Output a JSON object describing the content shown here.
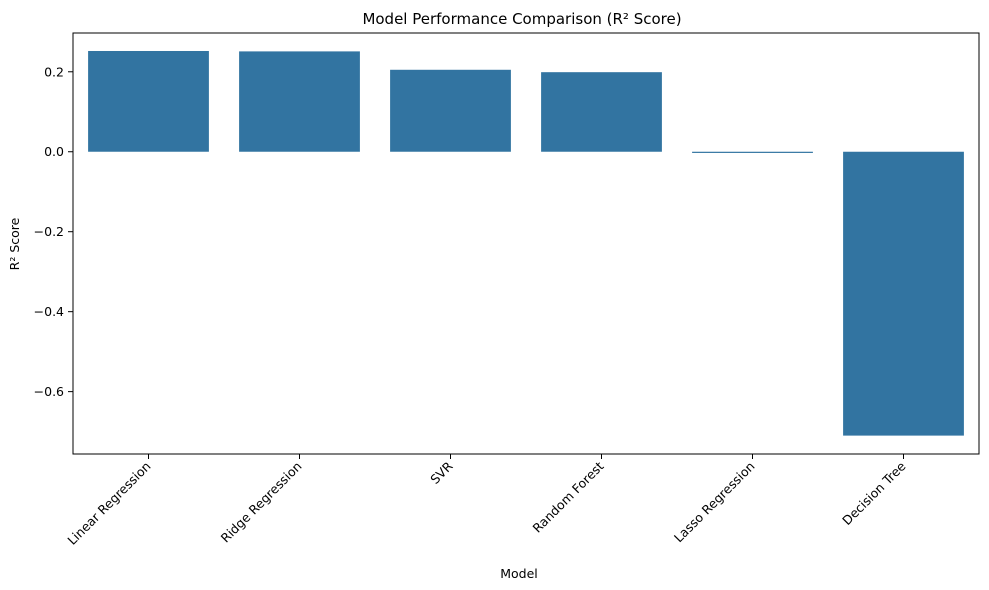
{
  "chart_data": {
    "type": "bar",
    "title": "Model Performance Comparison (R² Score)",
    "xlabel": "Model",
    "ylabel": "R² Score",
    "categories": [
      "Linear Regression",
      "Ridge Regression",
      "SVR",
      "Random Forest",
      "Lasso Regression",
      "Decision Tree"
    ],
    "values": [
      0.252,
      0.251,
      0.205,
      0.199,
      -0.003,
      -0.71
    ],
    "ylim": [
      -0.756,
      0.297
    ],
    "yticks": [
      0.2,
      0.0,
      -0.2,
      -0.4,
      -0.6
    ],
    "ytick_labels": [
      "0.2",
      "0.0",
      "−0.2",
      "−0.4",
      "−0.6"
    ],
    "grid": false,
    "bar_color": "#3274a1"
  }
}
